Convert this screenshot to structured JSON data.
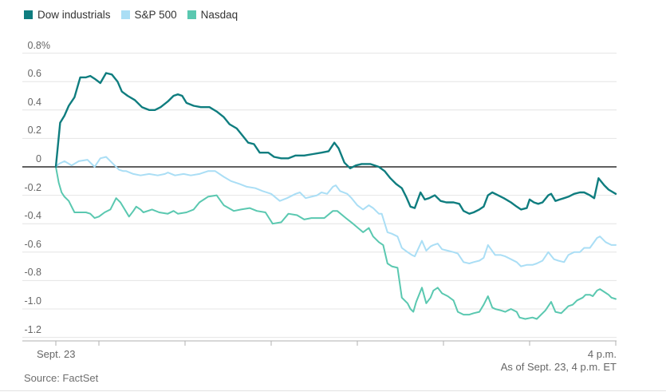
{
  "chart_data": {
    "type": "line",
    "description": "Intraday percent change of major U.S. stock indexes",
    "x_axis": {
      "left_label": "Sept. 23",
      "right_label": "4 p.m.",
      "ticks_minutes": [
        0,
        30,
        90,
        150,
        210,
        270,
        330,
        390
      ],
      "range_minutes": [
        0,
        390
      ]
    },
    "y_axis": {
      "unit": "percent change",
      "ylim": [
        -1.2,
        0.8
      ],
      "ticks": [
        {
          "v": 0.8,
          "label": "0.8%"
        },
        {
          "v": 0.6,
          "label": "0.6"
        },
        {
          "v": 0.4,
          "label": "0.4"
        },
        {
          "v": 0.2,
          "label": "0.2"
        },
        {
          "v": 0.0,
          "label": "0"
        },
        {
          "v": -0.2,
          "label": "-0.2"
        },
        {
          "v": -0.4,
          "label": "-0.4"
        },
        {
          "v": -0.6,
          "label": "-0.6"
        },
        {
          "v": -0.8,
          "label": "-0.8"
        },
        {
          "v": -1.0,
          "label": "-1.0"
        },
        {
          "v": -1.2,
          "label": "-1.2"
        }
      ]
    },
    "grid_color": "#e4e4e4",
    "zero_line_color": "#2b2b2b",
    "axis_line_color": "#b0b0b0",
    "series": [
      {
        "name": "Dow industrials",
        "color": "#0f7d7f",
        "points": [
          [
            0,
            0
          ],
          [
            3,
            0.31
          ],
          [
            6,
            0.36
          ],
          [
            9,
            0.43
          ],
          [
            13,
            0.49
          ],
          [
            17,
            0.63
          ],
          [
            21,
            0.63
          ],
          [
            24,
            0.64
          ],
          [
            27,
            0.62
          ],
          [
            31,
            0.59
          ],
          [
            35,
            0.66
          ],
          [
            39,
            0.65
          ],
          [
            43,
            0.6
          ],
          [
            46,
            0.53
          ],
          [
            50,
            0.5
          ],
          [
            55,
            0.47
          ],
          [
            60,
            0.42
          ],
          [
            65,
            0.4
          ],
          [
            69,
            0.4
          ],
          [
            73,
            0.42
          ],
          [
            78,
            0.46
          ],
          [
            82,
            0.5
          ],
          [
            85,
            0.51
          ],
          [
            88,
            0.5
          ],
          [
            91,
            0.45
          ],
          [
            96,
            0.43
          ],
          [
            101,
            0.42
          ],
          [
            107,
            0.42
          ],
          [
            112,
            0.39
          ],
          [
            117,
            0.35
          ],
          [
            121,
            0.3
          ],
          [
            126,
            0.27
          ],
          [
            130,
            0.22
          ],
          [
            134,
            0.17
          ],
          [
            138,
            0.16
          ],
          [
            142,
            0.1
          ],
          [
            148,
            0.1
          ],
          [
            152,
            0.07
          ],
          [
            157,
            0.06
          ],
          [
            162,
            0.06
          ],
          [
            167,
            0.08
          ],
          [
            173,
            0.08
          ],
          [
            179,
            0.09
          ],
          [
            185,
            0.1
          ],
          [
            190,
            0.11
          ],
          [
            194,
            0.17
          ],
          [
            197,
            0.13
          ],
          [
            201,
            0.03
          ],
          [
            205,
            -0.01
          ],
          [
            209,
            0.01
          ],
          [
            213,
            0.02
          ],
          [
            219,
            0.02
          ],
          [
            225,
            0
          ],
          [
            229,
            -0.03
          ],
          [
            233,
            -0.08
          ],
          [
            237,
            -0.12
          ],
          [
            241,
            -0.15
          ],
          [
            244,
            -0.21
          ],
          [
            247,
            -0.28
          ],
          [
            250,
            -0.29
          ],
          [
            254,
            -0.18
          ],
          [
            257,
            -0.23
          ],
          [
            260,
            -0.22
          ],
          [
            264,
            -0.2
          ],
          [
            268,
            -0.24
          ],
          [
            272,
            -0.25
          ],
          [
            277,
            -0.25
          ],
          [
            281,
            -0.26
          ],
          [
            284,
            -0.31
          ],
          [
            288,
            -0.33
          ],
          [
            291,
            -0.32
          ],
          [
            295,
            -0.3
          ],
          [
            298,
            -0.28
          ],
          [
            301,
            -0.2
          ],
          [
            304,
            -0.18
          ],
          [
            308,
            -0.2
          ],
          [
            312,
            -0.22
          ],
          [
            317,
            -0.25
          ],
          [
            321,
            -0.28
          ],
          [
            324,
            -0.3
          ],
          [
            328,
            -0.29
          ],
          [
            330,
            -0.23
          ],
          [
            333,
            -0.25
          ],
          [
            336,
            -0.26
          ],
          [
            339,
            -0.25
          ],
          [
            343,
            -0.2
          ],
          [
            345,
            -0.19
          ],
          [
            348,
            -0.24
          ],
          [
            351,
            -0.23
          ],
          [
            354,
            -0.22
          ],
          [
            357,
            -0.21
          ],
          [
            361,
            -0.19
          ],
          [
            365,
            -0.18
          ],
          [
            368,
            -0.18
          ],
          [
            372,
            -0.2
          ],
          [
            375,
            -0.22
          ],
          [
            378,
            -0.08
          ],
          [
            382,
            -0.13
          ],
          [
            385,
            -0.16
          ],
          [
            390,
            -0.19
          ]
        ]
      },
      {
        "name": "S&P 500",
        "color": "#aadef5",
        "points": [
          [
            0,
            0
          ],
          [
            2,
            0.02
          ],
          [
            6,
            0.04
          ],
          [
            11,
            0.01
          ],
          [
            16,
            0.04
          ],
          [
            22,
            0.05
          ],
          [
            27,
            0
          ],
          [
            31,
            0.06
          ],
          [
            35,
            0.07
          ],
          [
            40,
            0.02
          ],
          [
            44,
            -0.02
          ],
          [
            47,
            -0.03
          ],
          [
            49,
            -0.03
          ],
          [
            54,
            -0.05
          ],
          [
            59,
            -0.06
          ],
          [
            65,
            -0.05
          ],
          [
            71,
            -0.06
          ],
          [
            76,
            -0.05
          ],
          [
            78,
            -0.04
          ],
          [
            83,
            -0.06
          ],
          [
            89,
            -0.05
          ],
          [
            94,
            -0.06
          ],
          [
            100,
            -0.05
          ],
          [
            106,
            -0.03
          ],
          [
            111,
            -0.03
          ],
          [
            117,
            -0.07
          ],
          [
            122,
            -0.1
          ],
          [
            128,
            -0.12
          ],
          [
            133,
            -0.14
          ],
          [
            139,
            -0.15
          ],
          [
            144,
            -0.17
          ],
          [
            150,
            -0.19
          ],
          [
            156,
            -0.24
          ],
          [
            161,
            -0.22
          ],
          [
            167,
            -0.19
          ],
          [
            170,
            -0.18
          ],
          [
            174,
            -0.22
          ],
          [
            178,
            -0.21
          ],
          [
            182,
            -0.2
          ],
          [
            185,
            -0.18
          ],
          [
            189,
            -0.19
          ],
          [
            193,
            -0.14
          ],
          [
            195,
            -0.13
          ],
          [
            198,
            -0.17
          ],
          [
            203,
            -0.19
          ],
          [
            206,
            -0.22
          ],
          [
            210,
            -0.27
          ],
          [
            214,
            -0.3
          ],
          [
            218,
            -0.27
          ],
          [
            221,
            -0.29
          ],
          [
            225,
            -0.33
          ],
          [
            227,
            -0.33
          ],
          [
            231,
            -0.46
          ],
          [
            234,
            -0.47
          ],
          [
            238,
            -0.49
          ],
          [
            241,
            -0.57
          ],
          [
            245,
            -0.6
          ],
          [
            248,
            -0.62
          ],
          [
            250,
            -0.63
          ],
          [
            255,
            -0.52
          ],
          [
            258,
            -0.59
          ],
          [
            261,
            -0.56
          ],
          [
            263,
            -0.55
          ],
          [
            266,
            -0.54
          ],
          [
            269,
            -0.58
          ],
          [
            273,
            -0.59
          ],
          [
            277,
            -0.6
          ],
          [
            280,
            -0.61
          ],
          [
            284,
            -0.67
          ],
          [
            288,
            -0.68
          ],
          [
            291,
            -0.67
          ],
          [
            295,
            -0.66
          ],
          [
            298,
            -0.64
          ],
          [
            301,
            -0.55
          ],
          [
            306,
            -0.62
          ],
          [
            310,
            -0.62
          ],
          [
            313,
            -0.63
          ],
          [
            317,
            -0.65
          ],
          [
            321,
            -0.67
          ],
          [
            324,
            -0.7
          ],
          [
            328,
            -0.69
          ],
          [
            332,
            -0.69
          ],
          [
            335,
            -0.68
          ],
          [
            339,
            -0.66
          ],
          [
            343,
            -0.6
          ],
          [
            347,
            -0.65
          ],
          [
            350,
            -0.66
          ],
          [
            354,
            -0.67
          ],
          [
            357,
            -0.62
          ],
          [
            361,
            -0.6
          ],
          [
            365,
            -0.6
          ],
          [
            368,
            -0.57
          ],
          [
            372,
            -0.57
          ],
          [
            377,
            -0.5
          ],
          [
            379,
            -0.49
          ],
          [
            383,
            -0.53
          ],
          [
            387,
            -0.55
          ],
          [
            390,
            -0.55
          ]
        ]
      },
      {
        "name": "Nasdaq",
        "color": "#5ac8b0",
        "points": [
          [
            0,
            0
          ],
          [
            2,
            -0.11
          ],
          [
            4,
            -0.18
          ],
          [
            6,
            -0.21
          ],
          [
            9,
            -0.24
          ],
          [
            13,
            -0.32
          ],
          [
            17,
            -0.32
          ],
          [
            21,
            -0.32
          ],
          [
            24,
            -0.33
          ],
          [
            27,
            -0.36
          ],
          [
            30,
            -0.35
          ],
          [
            34,
            -0.32
          ],
          [
            38,
            -0.3
          ],
          [
            42,
            -0.22
          ],
          [
            45,
            -0.25
          ],
          [
            51,
            -0.35
          ],
          [
            54,
            -0.31
          ],
          [
            56,
            -0.28
          ],
          [
            59,
            -0.3
          ],
          [
            61,
            -0.32
          ],
          [
            67,
            -0.3
          ],
          [
            72,
            -0.32
          ],
          [
            78,
            -0.33
          ],
          [
            82,
            -0.31
          ],
          [
            85,
            -0.33
          ],
          [
            91,
            -0.32
          ],
          [
            96,
            -0.3
          ],
          [
            100,
            -0.25
          ],
          [
            106,
            -0.21
          ],
          [
            112,
            -0.2
          ],
          [
            117,
            -0.27
          ],
          [
            124,
            -0.31
          ],
          [
            129,
            -0.3
          ],
          [
            135,
            -0.29
          ],
          [
            140,
            -0.31
          ],
          [
            146,
            -0.32
          ],
          [
            151,
            -0.4
          ],
          [
            157,
            -0.39
          ],
          [
            162,
            -0.33
          ],
          [
            168,
            -0.34
          ],
          [
            173,
            -0.37
          ],
          [
            178,
            -0.36
          ],
          [
            183,
            -0.36
          ],
          [
            187,
            -0.36
          ],
          [
            193,
            -0.31
          ],
          [
            196,
            -0.31
          ],
          [
            202,
            -0.36
          ],
          [
            207,
            -0.4
          ],
          [
            214,
            -0.46
          ],
          [
            218,
            -0.43
          ],
          [
            221,
            -0.49
          ],
          [
            225,
            -0.53
          ],
          [
            228,
            -0.55
          ],
          [
            231,
            -0.68
          ],
          [
            234,
            -0.7
          ],
          [
            238,
            -0.71
          ],
          [
            241,
            -0.92
          ],
          [
            245,
            -0.96
          ],
          [
            247,
            -1
          ],
          [
            249,
            -1.02
          ],
          [
            251,
            -0.95
          ],
          [
            255,
            -0.85
          ],
          [
            258,
            -0.96
          ],
          [
            261,
            -0.92
          ],
          [
            263,
            -0.87
          ],
          [
            266,
            -0.85
          ],
          [
            269,
            -0.89
          ],
          [
            273,
            -0.91
          ],
          [
            277,
            -0.94
          ],
          [
            280,
            -1.02
          ],
          [
            284,
            -1.04
          ],
          [
            288,
            -1.04
          ],
          [
            291,
            -1.03
          ],
          [
            295,
            -1.02
          ],
          [
            298,
            -0.97
          ],
          [
            301,
            -0.91
          ],
          [
            304,
            -0.99
          ],
          [
            306,
            -1
          ],
          [
            310,
            -1.01
          ],
          [
            313,
            -1.02
          ],
          [
            317,
            -1
          ],
          [
            321,
            -1.02
          ],
          [
            323,
            -1.06
          ],
          [
            327,
            -1.07
          ],
          [
            332,
            -1.06
          ],
          [
            335,
            -1.07
          ],
          [
            341,
            -1.01
          ],
          [
            345,
            -0.95
          ],
          [
            348,
            -1.02
          ],
          [
            352,
            -1.03
          ],
          [
            354,
            -1.01
          ],
          [
            357,
            -0.98
          ],
          [
            360,
            -0.97
          ],
          [
            363,
            -0.94
          ],
          [
            367,
            -0.92
          ],
          [
            369,
            -0.9
          ],
          [
            372,
            -0.9
          ],
          [
            374,
            -0.91
          ],
          [
            377,
            -0.87
          ],
          [
            379,
            -0.86
          ],
          [
            382,
            -0.88
          ],
          [
            385,
            -0.9
          ],
          [
            387,
            -0.92
          ],
          [
            390,
            -0.93
          ]
        ]
      }
    ]
  },
  "footer": {
    "as_of": "As of Sept. 23, 4 p.m. ET",
    "source": "Source: FactSet"
  }
}
